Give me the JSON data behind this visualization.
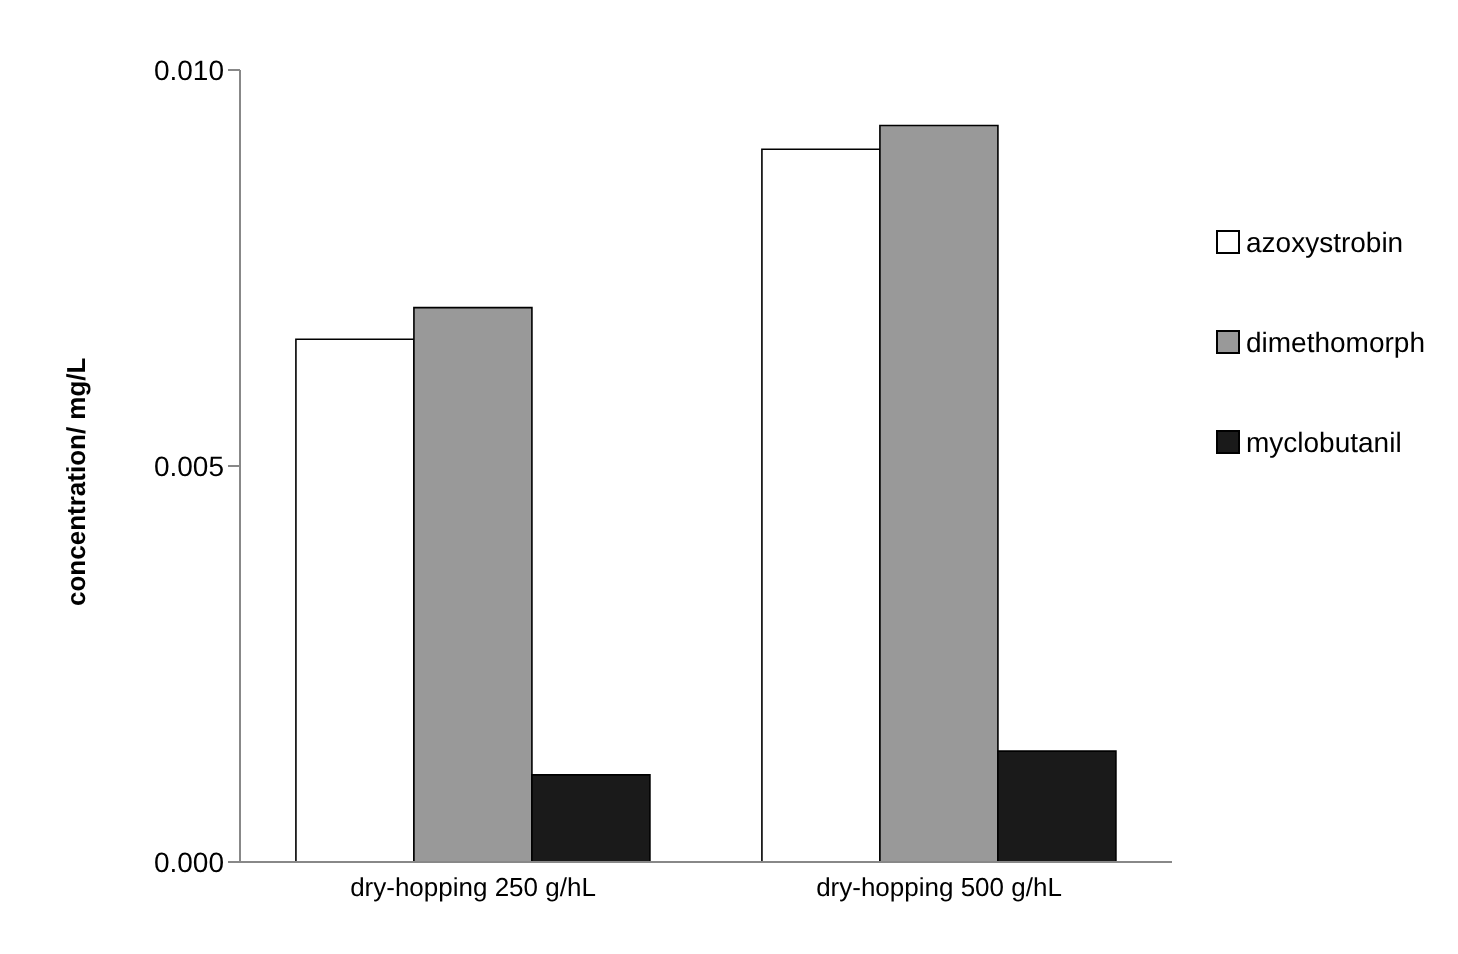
{
  "chart_data": {
    "type": "bar",
    "ylabel": "concentration/ mg/L",
    "categories": [
      "dry-hopping 250 g/hL",
      "dry-hopping 500 g/hL"
    ],
    "series": [
      {
        "name": "azoxystrobin",
        "color": "#ffffff",
        "values": [
          0.0066,
          0.009
        ]
      },
      {
        "name": "dimethomorph",
        "color": "#999999",
        "values": [
          0.007,
          0.0093
        ]
      },
      {
        "name": "myclobutanil",
        "color": "#1a1a1a",
        "values": [
          0.0011,
          0.0014
        ]
      }
    ],
    "ylim": [
      0,
      0.01
    ],
    "yticks": [
      {
        "value": 0,
        "label": "0.000"
      },
      {
        "value": 0.005,
        "label": "0.005"
      },
      {
        "value": 0.01,
        "label": "0.010"
      }
    ],
    "grid": false,
    "legend": "right"
  }
}
